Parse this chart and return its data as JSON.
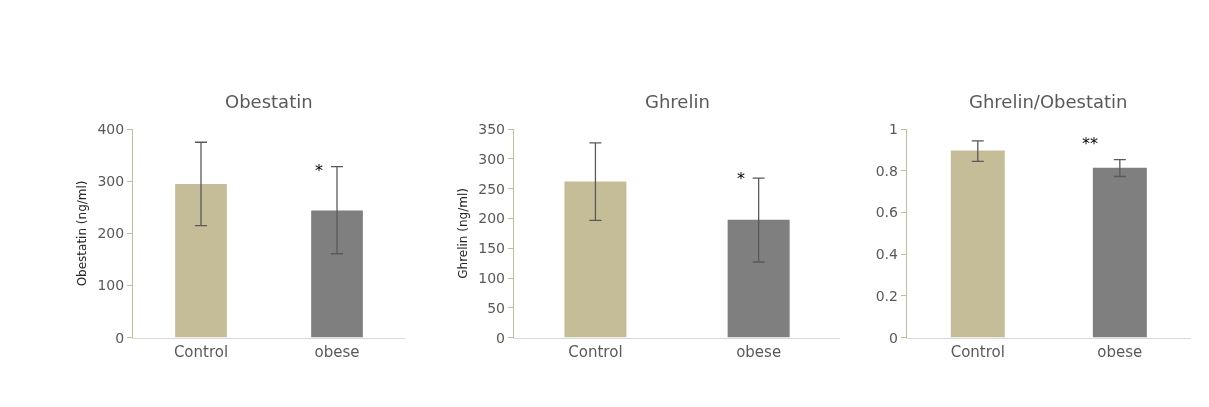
{
  "chart_data": [
    {
      "type": "bar",
      "title": "Obestatin",
      "ylabel": "Obestatin (ng/ml)",
      "categories": [
        "Control",
        "obese"
      ],
      "values": [
        295,
        244
      ],
      "colors": [
        "#c4bd97",
        "#7f7f7f"
      ],
      "errors": [
        [
          215,
          375
        ],
        [
          161,
          328
        ]
      ],
      "ylim": [
        0,
        400
      ],
      "yticks": [
        0,
        100,
        200,
        300,
        400
      ],
      "annotations": [
        {
          "text": "*",
          "x": "obese",
          "y": 320
        }
      ]
    },
    {
      "type": "bar",
      "title": "Ghrelin",
      "ylabel": "Ghrelin (ng/ml)",
      "categories": [
        "Control",
        "obese"
      ],
      "values": [
        262,
        198
      ],
      "colors": [
        "#c4bd97",
        "#7f7f7f"
      ],
      "errors": [
        [
          197,
          327
        ],
        [
          127,
          268
        ]
      ],
      "ylim": [
        0,
        350
      ],
      "yticks": [
        0,
        50,
        100,
        150,
        200,
        250,
        300,
        350
      ],
      "annotations": [
        {
          "text": "*",
          "x": "obese",
          "y": 268
        }
      ]
    },
    {
      "type": "bar",
      "title": "Ghrelin/Obestatin",
      "categories": [
        "Control",
        "obese"
      ],
      "values": [
        0.898,
        0.815
      ],
      "colors": [
        "#c4bd97",
        "#7f7f7f"
      ],
      "errors": [
        [
          0.846,
          0.944
        ],
        [
          0.773,
          0.854
        ]
      ],
      "ylim": [
        0,
        1
      ],
      "yticks": [
        0,
        0.2,
        0.4,
        0.6,
        0.8,
        1
      ],
      "annotations": [
        "**"
      ]
    }
  ]
}
